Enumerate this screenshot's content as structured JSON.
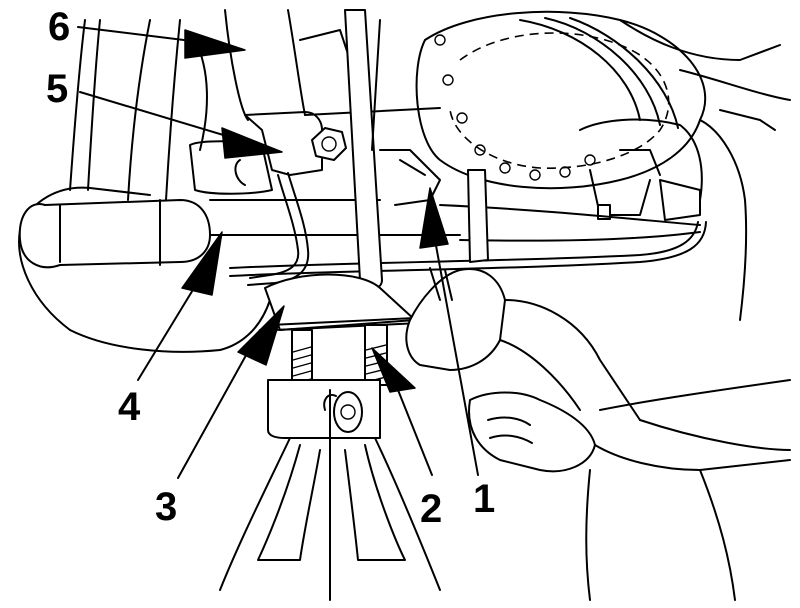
{
  "callouts": [
    {
      "id": "1",
      "label": "1"
    },
    {
      "id": "2",
      "label": "2"
    },
    {
      "id": "3",
      "label": "3"
    },
    {
      "id": "4",
      "label": "4"
    },
    {
      "id": "5",
      "label": "5"
    },
    {
      "id": "6",
      "label": "6"
    }
  ],
  "colors": {
    "ink": "#000000",
    "paper": "#ffffff"
  }
}
